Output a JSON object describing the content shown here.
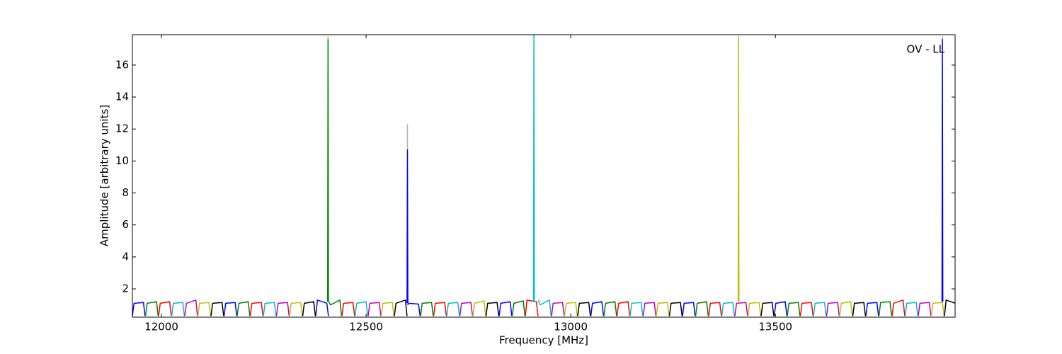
{
  "chart_data": {
    "type": "line",
    "annotation": "OV - LL",
    "x_label": "Frequency [MHz]",
    "y_label": "Amplitude [arbitrary units]",
    "xlim": [
      11929,
      13939
    ],
    "ylim": [
      0.23,
      17.9
    ],
    "xticks": [
      12000,
      12500,
      13000,
      13500
    ],
    "yticks": [
      2,
      4,
      6,
      8,
      10,
      12,
      14,
      16
    ],
    "series": [
      {
        "color": "#b0b0b0",
        "x": [
          12407,
          12407,
          12407,
          12601,
          12601,
          12601,
          13410,
          13410,
          13410,
          13908,
          13908,
          13908
        ],
        "values": [
          17.0,
          17.8,
          null,
          10.7,
          12.3,
          null,
          17.0,
          17.8,
          null,
          17.0,
          17.8,
          null
        ]
      },
      {
        "color": "#0000ff",
        "x": [
          11929,
          11933,
          11956,
          11960,
          11961,
          12153,
          12157,
          12180,
          12184,
          12185,
          12377,
          12381,
          12404,
          12408,
          12409,
          12601,
          12605,
          12628,
          12632,
          12633,
          12825,
          12829,
          12852,
          12856,
          12857,
          13049,
          13053,
          13076,
          13080,
          13081,
          13273,
          13277,
          13300,
          13304,
          13305,
          13497,
          13501,
          13524,
          13528,
          13529,
          13721,
          13725,
          13748,
          13752,
          13753
        ],
        "values": [
          0.3,
          1.1,
          1.15,
          0.3,
          null,
          0.3,
          1.1,
          1.15,
          0.3,
          null,
          0.3,
          1.3,
          1.1,
          0.3,
          null,
          1.0,
          1.1,
          1.05,
          0.3,
          null,
          0.3,
          1.1,
          1.2,
          0.3,
          null,
          0.3,
          1.1,
          1.2,
          0.3,
          null,
          0.3,
          1.1,
          1.15,
          0.3,
          null,
          0.3,
          1.1,
          1.2,
          0.3,
          null,
          0.3,
          1.1,
          1.15,
          0.3,
          null
        ]
      },
      {
        "color": "#008000",
        "x": [
          11961,
          11965,
          11988,
          11992,
          11993,
          12185,
          12189,
          12212,
          12216,
          12217,
          12409,
          12413,
          12436,
          12440,
          12441,
          12633,
          12637,
          12660,
          12664,
          12665,
          12857,
          12861,
          12884,
          12888,
          12889,
          13081,
          13085,
          13108,
          13112,
          13113,
          13305,
          13309,
          13332,
          13336,
          13337,
          13529,
          13533,
          13556,
          13560,
          13561,
          13753,
          13757,
          13780,
          13784,
          13785
        ],
        "values": [
          0.3,
          1.1,
          1.2,
          0.3,
          null,
          0.3,
          1.1,
          1.2,
          0.3,
          null,
          1.2,
          1.0,
          1.3,
          0.3,
          null,
          0.3,
          1.1,
          1.15,
          0.3,
          null,
          0.3,
          1.1,
          1.25,
          0.3,
          null,
          0.3,
          1.1,
          1.2,
          0.3,
          null,
          0.3,
          1.1,
          1.2,
          0.3,
          null,
          0.3,
          1.1,
          1.15,
          0.3,
          null,
          0.3,
          1.15,
          1.2,
          0.3,
          null
        ]
      },
      {
        "color": "#ff0000",
        "x": [
          11993,
          11997,
          12020,
          12024,
          12025,
          12217,
          12221,
          12244,
          12248,
          12249,
          12441,
          12445,
          12468,
          12472,
          12473,
          12665,
          12669,
          12692,
          12696,
          12697,
          12889,
          12893,
          12916,
          12920,
          12921,
          13113,
          13117,
          13140,
          13144,
          13145,
          13337,
          13341,
          13364,
          13368,
          13369,
          13561,
          13565,
          13588,
          13592,
          13593,
          13785,
          13789,
          13812,
          13816,
          13817
        ],
        "values": [
          0.3,
          1.1,
          1.2,
          0.3,
          null,
          0.3,
          1.1,
          1.15,
          0.3,
          null,
          0.3,
          1.1,
          1.15,
          0.3,
          null,
          0.3,
          1.1,
          1.15,
          0.3,
          null,
          0.3,
          1.3,
          1.2,
          0.3,
          null,
          0.3,
          1.1,
          1.2,
          0.3,
          null,
          0.3,
          1.1,
          1.15,
          0.3,
          null,
          0.3,
          1.1,
          1.15,
          0.3,
          null,
          0.3,
          1.1,
          1.3,
          0.3,
          null
        ]
      },
      {
        "color": "#00bfbf",
        "x": [
          12025,
          12029,
          12052,
          12056,
          12057,
          12249,
          12253,
          12276,
          12280,
          12281,
          12473,
          12477,
          12500,
          12504,
          12505,
          12697,
          12701,
          12724,
          12728,
          12729,
          12921,
          12925,
          12948,
          12952,
          12953,
          13145,
          13149,
          13172,
          13176,
          13177,
          13369,
          13373,
          13396,
          13400,
          13401,
          13593,
          13597,
          13620,
          13624,
          13625,
          13817,
          13821,
          13844,
          13848,
          13849
        ],
        "values": [
          0.3,
          1.1,
          1.15,
          0.3,
          null,
          0.3,
          1.1,
          1.15,
          0.3,
          null,
          0.3,
          1.1,
          1.2,
          0.3,
          null,
          0.3,
          1.1,
          1.15,
          0.3,
          null,
          1.3,
          1.0,
          1.3,
          0.3,
          null,
          0.3,
          1.1,
          1.15,
          0.3,
          null,
          0.3,
          1.1,
          1.15,
          0.3,
          null,
          0.3,
          1.1,
          1.15,
          0.3,
          null,
          0.3,
          1.1,
          1.15,
          0.3,
          null
        ]
      },
      {
        "color": "#bf00bf",
        "x": [
          12057,
          12061,
          12084,
          12088,
          12089,
          12281,
          12285,
          12308,
          12312,
          12313,
          12505,
          12509,
          12532,
          12536,
          12537,
          12729,
          12733,
          12756,
          12760,
          12761,
          12953,
          12957,
          12980,
          12984,
          12985,
          13177,
          13181,
          13204,
          13208,
          13209,
          13401,
          13405,
          13428,
          13432,
          13433,
          13625,
          13629,
          13652,
          13656,
          13657,
          13849,
          13853,
          13876,
          13880,
          13881
        ],
        "values": [
          0.3,
          1.1,
          1.3,
          0.3,
          null,
          0.3,
          1.1,
          1.15,
          0.3,
          null,
          0.3,
          1.1,
          1.15,
          0.3,
          null,
          0.3,
          1.1,
          1.15,
          0.3,
          null,
          0.3,
          1.1,
          1.15,
          0.3,
          null,
          0.3,
          1.1,
          1.15,
          0.3,
          null,
          0.3,
          1.1,
          1.15,
          0.3,
          null,
          0.3,
          1.1,
          1.15,
          0.3,
          null,
          0.3,
          1.1,
          1.15,
          0.3,
          null
        ]
      },
      {
        "color": "#bfbf00",
        "x": [
          12089,
          12093,
          12116,
          12120,
          12121,
          12313,
          12317,
          12340,
          12344,
          12345,
          12537,
          12541,
          12564,
          12568,
          12569,
          12761,
          12765,
          12788,
          12792,
          12793,
          12985,
          12989,
          13012,
          13016,
          13017,
          13209,
          13213,
          13236,
          13240,
          13241,
          13433,
          13437,
          13460,
          13464,
          13465,
          13657,
          13661,
          13684,
          13688,
          13689,
          13881,
          13885,
          13908,
          13912,
          13913
        ],
        "values": [
          0.3,
          1.1,
          1.15,
          0.3,
          null,
          0.3,
          1.1,
          1.15,
          0.3,
          null,
          0.3,
          1.1,
          1.15,
          0.3,
          null,
          0.3,
          1.1,
          1.25,
          0.3,
          null,
          0.3,
          1.1,
          1.15,
          0.3,
          null,
          0.3,
          1.1,
          1.15,
          0.3,
          null,
          0.3,
          1.1,
          1.15,
          0.3,
          null,
          0.3,
          1.1,
          1.2,
          0.3,
          null,
          0.3,
          1.1,
          1.15,
          0.3,
          null
        ]
      },
      {
        "color": "#000000",
        "x": [
          12121,
          12125,
          12148,
          12152,
          12153,
          12345,
          12349,
          12372,
          12376,
          12377,
          12569,
          12573,
          12596,
          12600,
          12601,
          12793,
          12797,
          12820,
          12824,
          12825,
          13017,
          13021,
          13044,
          13048,
          13049,
          13241,
          13245,
          13268,
          13272,
          13273,
          13465,
          13469,
          13492,
          13496,
          13497,
          13689,
          13693,
          13716,
          13720,
          13721,
          13913,
          13917,
          13940,
          13944,
          13945
        ],
        "values": [
          0.3,
          1.1,
          1.15,
          0.3,
          null,
          0.3,
          1.1,
          1.2,
          0.3,
          null,
          0.3,
          1.1,
          1.3,
          0.3,
          null,
          0.3,
          1.1,
          1.15,
          0.3,
          null,
          0.3,
          1.1,
          1.15,
          0.3,
          null,
          0.3,
          1.1,
          1.15,
          0.3,
          null,
          0.3,
          1.1,
          1.15,
          0.3,
          null,
          0.3,
          1.1,
          1.15,
          0.3,
          null,
          0.3,
          1.3,
          1.1,
          0.3,
          null
        ]
      },
      {
        "color": "#008000",
        "x": [
          12406,
          12407,
          12408
        ],
        "values": [
          1.2,
          17.6,
          1.2
        ]
      },
      {
        "color": "#0000ff",
        "x": [
          12600,
          12601,
          12602
        ],
        "values": [
          1.1,
          10.7,
          1.1
        ]
      },
      {
        "color": "#00bfbf",
        "x": [
          12909,
          12910,
          12911
        ],
        "values": [
          1.2,
          17.9,
          1.2
        ]
      },
      {
        "color": "#bfbf00",
        "x": [
          13409,
          13410,
          13411
        ],
        "values": [
          1.2,
          17.7,
          1.2
        ]
      },
      {
        "color": "#0000ff",
        "x": [
          13907,
          13908,
          13909
        ],
        "values": [
          1.2,
          17.6,
          1.2
        ]
      }
    ]
  }
}
